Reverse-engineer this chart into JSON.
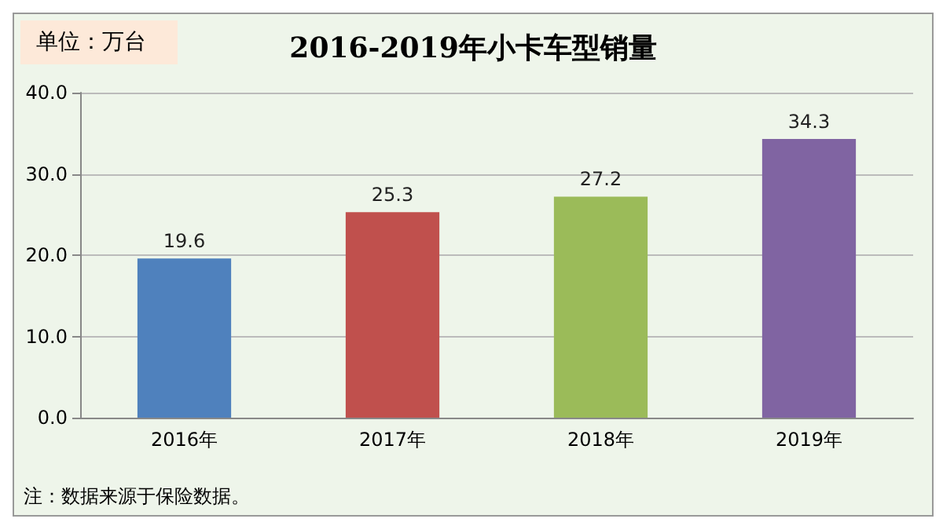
{
  "chart_data": {
    "type": "bar",
    "title": "2016-2019年小卡车型销量",
    "ylabel": "单位：万台",
    "categories": [
      "2016年",
      "2017年",
      "2018年",
      "2019年"
    ],
    "values": [
      19.6,
      25.3,
      27.2,
      34.3
    ],
    "colors": [
      "#4f81bd",
      "#c0504d",
      "#9bbb59",
      "#8064a2"
    ],
    "ylim": [
      0,
      40
    ],
    "yticks": [
      {
        "value": 0,
        "label": "0.0"
      },
      {
        "value": 10,
        "label": "10.0"
      },
      {
        "value": 20,
        "label": "20.0"
      },
      {
        "value": 30,
        "label": "30.0"
      },
      {
        "value": 40,
        "label": "40.0"
      }
    ],
    "grid": "y",
    "data_labels": true,
    "annotations": [
      "注：数据来源于保险数据。"
    ]
  }
}
